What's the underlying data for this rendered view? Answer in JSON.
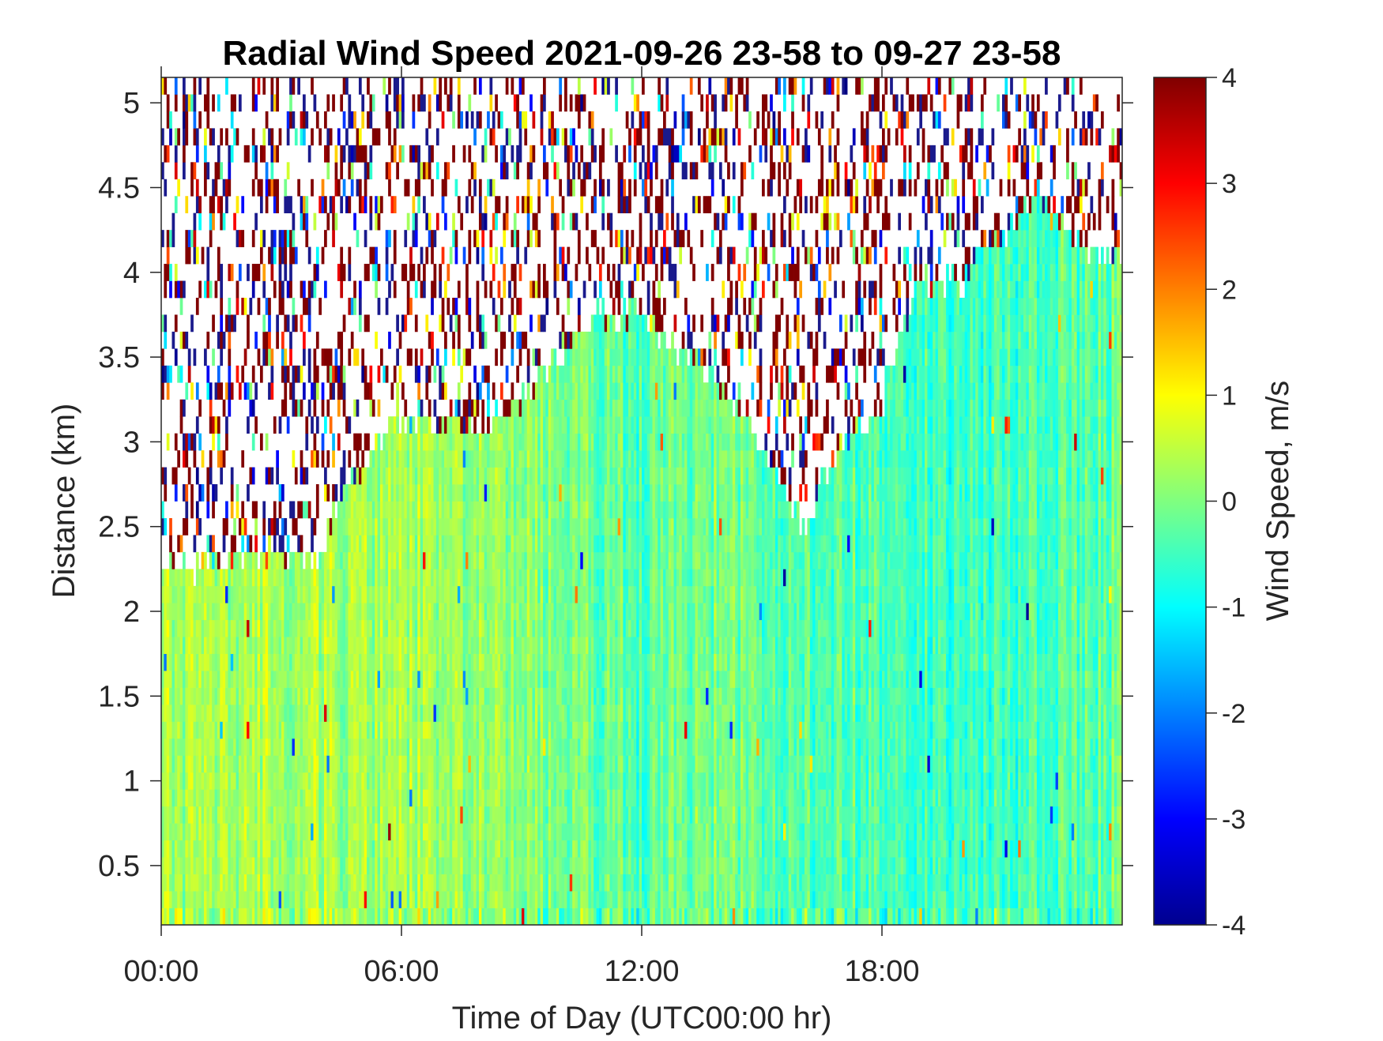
{
  "chart_data": {
    "type": "heatmap",
    "title": "Radial Wind Speed 2021-09-26 23-58 to 09-27 23-58",
    "xlabel": "Time of Day (UTC00:00 hr)",
    "ylabel": "Distance (km)",
    "xlim": [
      0,
      24
    ],
    "ylim": [
      0.15,
      5.15
    ],
    "xticks": [
      0,
      6,
      12,
      18
    ],
    "xtick_labels": [
      "00:00",
      "06:00",
      "12:00",
      "18:00"
    ],
    "yticks": [
      0.5,
      1,
      1.5,
      2,
      2.5,
      3,
      3.5,
      4,
      4.5,
      5
    ],
    "ytick_labels": [
      "0.5",
      "1",
      "1.5",
      "2",
      "2.5",
      "3",
      "3.5",
      "4",
      "4.5",
      "5"
    ],
    "colorbar": {
      "label": "Wind Speed, m/s",
      "range": [
        -4,
        4
      ],
      "ticks": [
        -4,
        -3,
        -2,
        -1,
        0,
        1,
        2,
        3,
        4
      ],
      "tick_labels": [
        "-4",
        "-3",
        "-2",
        "-1",
        "0",
        "1",
        "2",
        "3",
        "4"
      ],
      "colormap": "jet"
    },
    "signal_top_km": [
      {
        "t": 0,
        "km": 2.3
      },
      {
        "t": 1,
        "km": 2.3
      },
      {
        "t": 2,
        "km": 2.4
      },
      {
        "t": 3,
        "km": 2.4
      },
      {
        "t": 4,
        "km": 2.4
      },
      {
        "t": 4.3,
        "km": 2.65
      },
      {
        "t": 5,
        "km": 2.9
      },
      {
        "t": 5.5,
        "km": 3.1
      },
      {
        "t": 6,
        "km": 3.2
      },
      {
        "t": 7,
        "km": 3.15
      },
      {
        "t": 8,
        "km": 3.1
      },
      {
        "t": 9,
        "km": 3.3
      },
      {
        "t": 10,
        "km": 3.55
      },
      {
        "t": 11,
        "km": 3.8
      },
      {
        "t": 12,
        "km": 3.8
      },
      {
        "t": 13,
        "km": 3.55
      },
      {
        "t": 14,
        "km": 3.4
      },
      {
        "t": 15,
        "km": 3.0
      },
      {
        "t": 16,
        "km": 2.55
      },
      {
        "t": 17,
        "km": 3.0
      },
      {
        "t": 18,
        "km": 3.25
      },
      {
        "t": 18.6,
        "km": 3.8
      },
      {
        "t": 19,
        "km": 4.0
      },
      {
        "t": 20,
        "km": 4.0
      },
      {
        "t": 21,
        "km": 4.3
      },
      {
        "t": 22,
        "km": 4.5
      },
      {
        "t": 23,
        "km": 4.2
      },
      {
        "t": 24,
        "km": 4.1
      }
    ],
    "typical_speed_ms": [
      {
        "t": 0,
        "v": 0.3
      },
      {
        "t": 4,
        "v": 0.3
      },
      {
        "t": 8,
        "v": 0.2
      },
      {
        "t": 10,
        "v": 0.0
      },
      {
        "t": 12,
        "v": -0.4
      },
      {
        "t": 14,
        "v": 0.0
      },
      {
        "t": 16,
        "v": -0.4
      },
      {
        "t": 18,
        "v": -0.3
      },
      {
        "t": 20,
        "v": -0.6
      },
      {
        "t": 22,
        "v": -0.4
      },
      {
        "t": 24,
        "v": -0.2
      }
    ]
  }
}
